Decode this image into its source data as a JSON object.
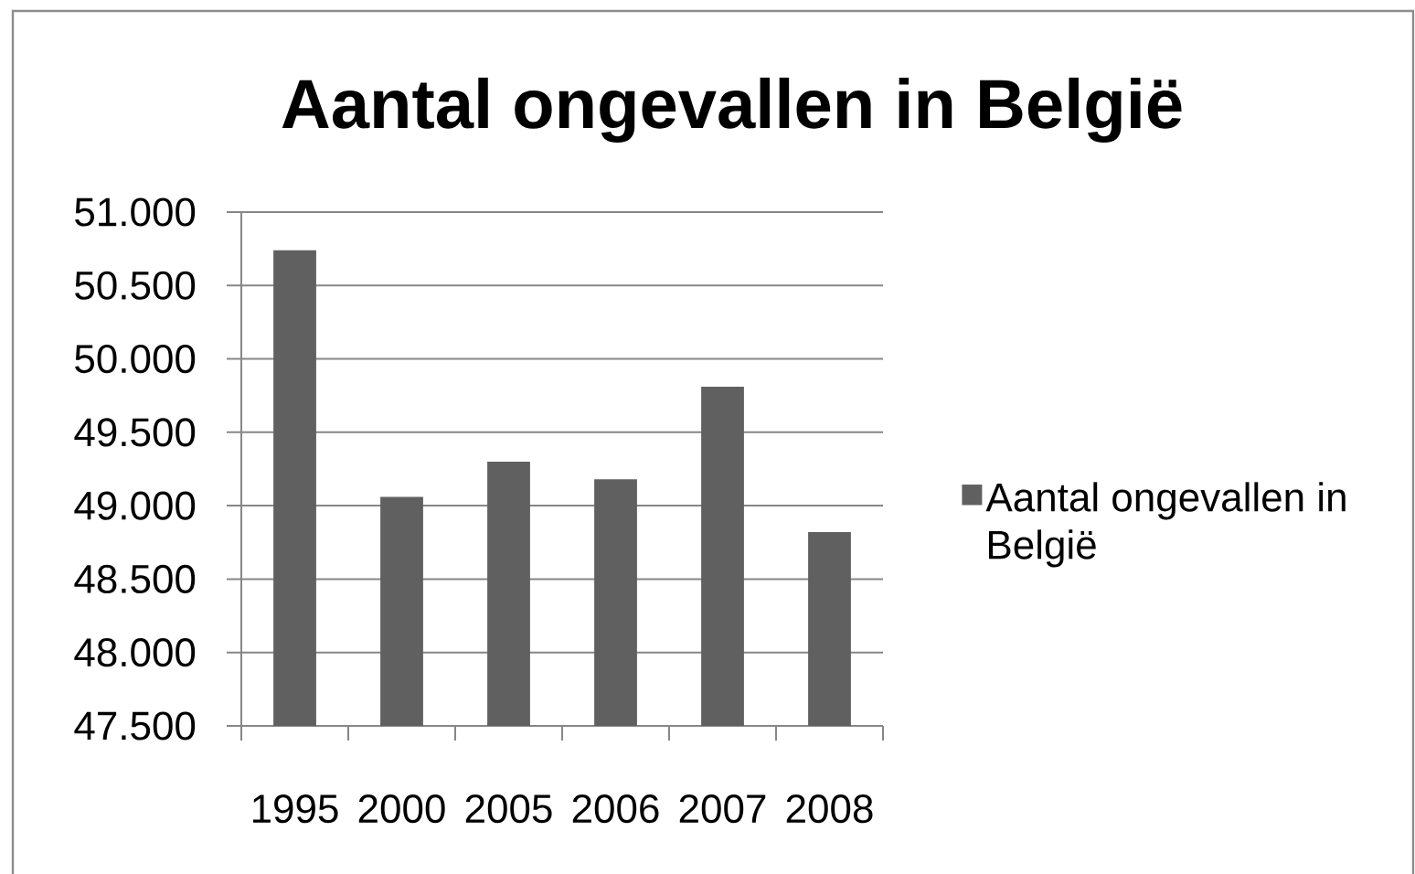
{
  "chart_data": {
    "type": "bar",
    "title": "Aantal ongevallen in België",
    "categories": [
      "1995",
      "2000",
      "2005",
      "2006",
      "2007",
      "2008"
    ],
    "series": [
      {
        "name": "Aantal ongevallen in België",
        "color": "#606060",
        "values": [
          50740,
          49060,
          49300,
          49180,
          49810,
          48820
        ]
      }
    ],
    "ylim": [
      47500,
      51000
    ],
    "yticks": [
      {
        "value": 47500,
        "label": "47.500"
      },
      {
        "value": 48000,
        "label": "48.000"
      },
      {
        "value": 48500,
        "label": "48.500"
      },
      {
        "value": 49000,
        "label": "49.000"
      },
      {
        "value": 49500,
        "label": "49.500"
      },
      {
        "value": 50000,
        "label": "50.000"
      },
      {
        "value": 50500,
        "label": "50.500"
      },
      {
        "value": 51000,
        "label": "51.000"
      }
    ],
    "grid": "y",
    "legend": "right"
  }
}
